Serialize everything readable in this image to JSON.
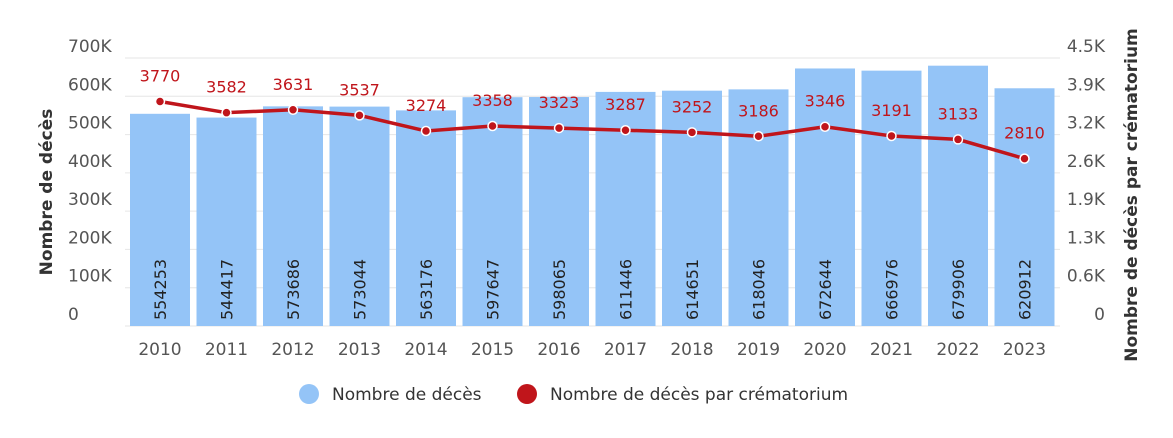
{
  "chart_data": {
    "type": "bar+line",
    "categories": [
      "2010",
      "2011",
      "2012",
      "2013",
      "2014",
      "2015",
      "2016",
      "2017",
      "2018",
      "2019",
      "2020",
      "2021",
      "2022",
      "2023"
    ],
    "series": [
      {
        "name": "Nombre de décès",
        "type": "bar",
        "axis": "left",
        "color": "#94c4f7",
        "values": [
          554253,
          544417,
          573686,
          573044,
          563176,
          597647,
          598065,
          611446,
          614651,
          618046,
          672644,
          666976,
          679906,
          620912
        ]
      },
      {
        "name": "Nombre de décès par crématorium",
        "type": "line",
        "axis": "right",
        "color": "#c0151b",
        "values": [
          3770,
          3582,
          3631,
          3537,
          3274,
          3358,
          3323,
          3287,
          3252,
          3186,
          3346,
          3191,
          3133,
          2810
        ]
      }
    ],
    "ylabel": "Nombre de décès",
    "y2label": "Nombre de décès par crématorium",
    "ylim": [
      0,
      700000
    ],
    "y2lim": [
      0,
      4500
    ],
    "yticks": [
      "0",
      "100K",
      "200K",
      "300K",
      "400K",
      "500K",
      "600K",
      "700K"
    ],
    "y2ticks": [
      "0",
      "0.6K",
      "1.3K",
      "1.9K",
      "2.6K",
      "3.2K",
      "3.9K",
      "4.5K"
    ],
    "grid": true,
    "legend": "bottom-center"
  }
}
